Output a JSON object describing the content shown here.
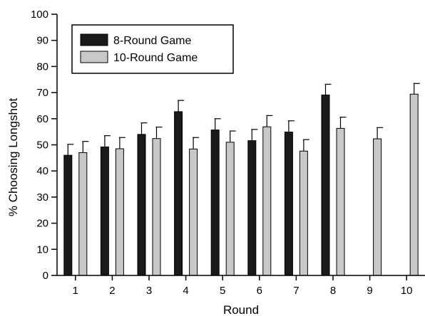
{
  "chart_data": {
    "type": "bar",
    "title": "",
    "xlabel": "Round",
    "ylabel": "% Choosing Longshot",
    "categories": [
      "1",
      "2",
      "3",
      "4",
      "5",
      "6",
      "7",
      "8",
      "9",
      "10"
    ],
    "ylim": [
      0,
      100
    ],
    "yticks": [
      "0",
      "10",
      "20",
      "30",
      "40",
      "50",
      "60",
      "70",
      "80",
      "90",
      "100"
    ],
    "grid": false,
    "legend_position": "top-left",
    "error_bars": "upper",
    "series": [
      {
        "name": "8-Round Game",
        "color": "#1a1a1a",
        "values": [
          46,
          49.2,
          54,
          62.7,
          55.7,
          51.6,
          54.9,
          69.1,
          null,
          null
        ],
        "errors": [
          4.2,
          4.3,
          4.4,
          4.3,
          4.3,
          4.3,
          4.3,
          4.1,
          null,
          null
        ]
      },
      {
        "name": "10-Round Game",
        "color": "#c8c8c8",
        "values": [
          47,
          48.5,
          52.4,
          48.4,
          51,
          56.9,
          47.6,
          56.3,
          52.3,
          69.4
        ],
        "errors": [
          4.3,
          4.3,
          4.4,
          4.4,
          4.3,
          4.3,
          4.4,
          4.3,
          4.3,
          4.1
        ]
      }
    ]
  }
}
